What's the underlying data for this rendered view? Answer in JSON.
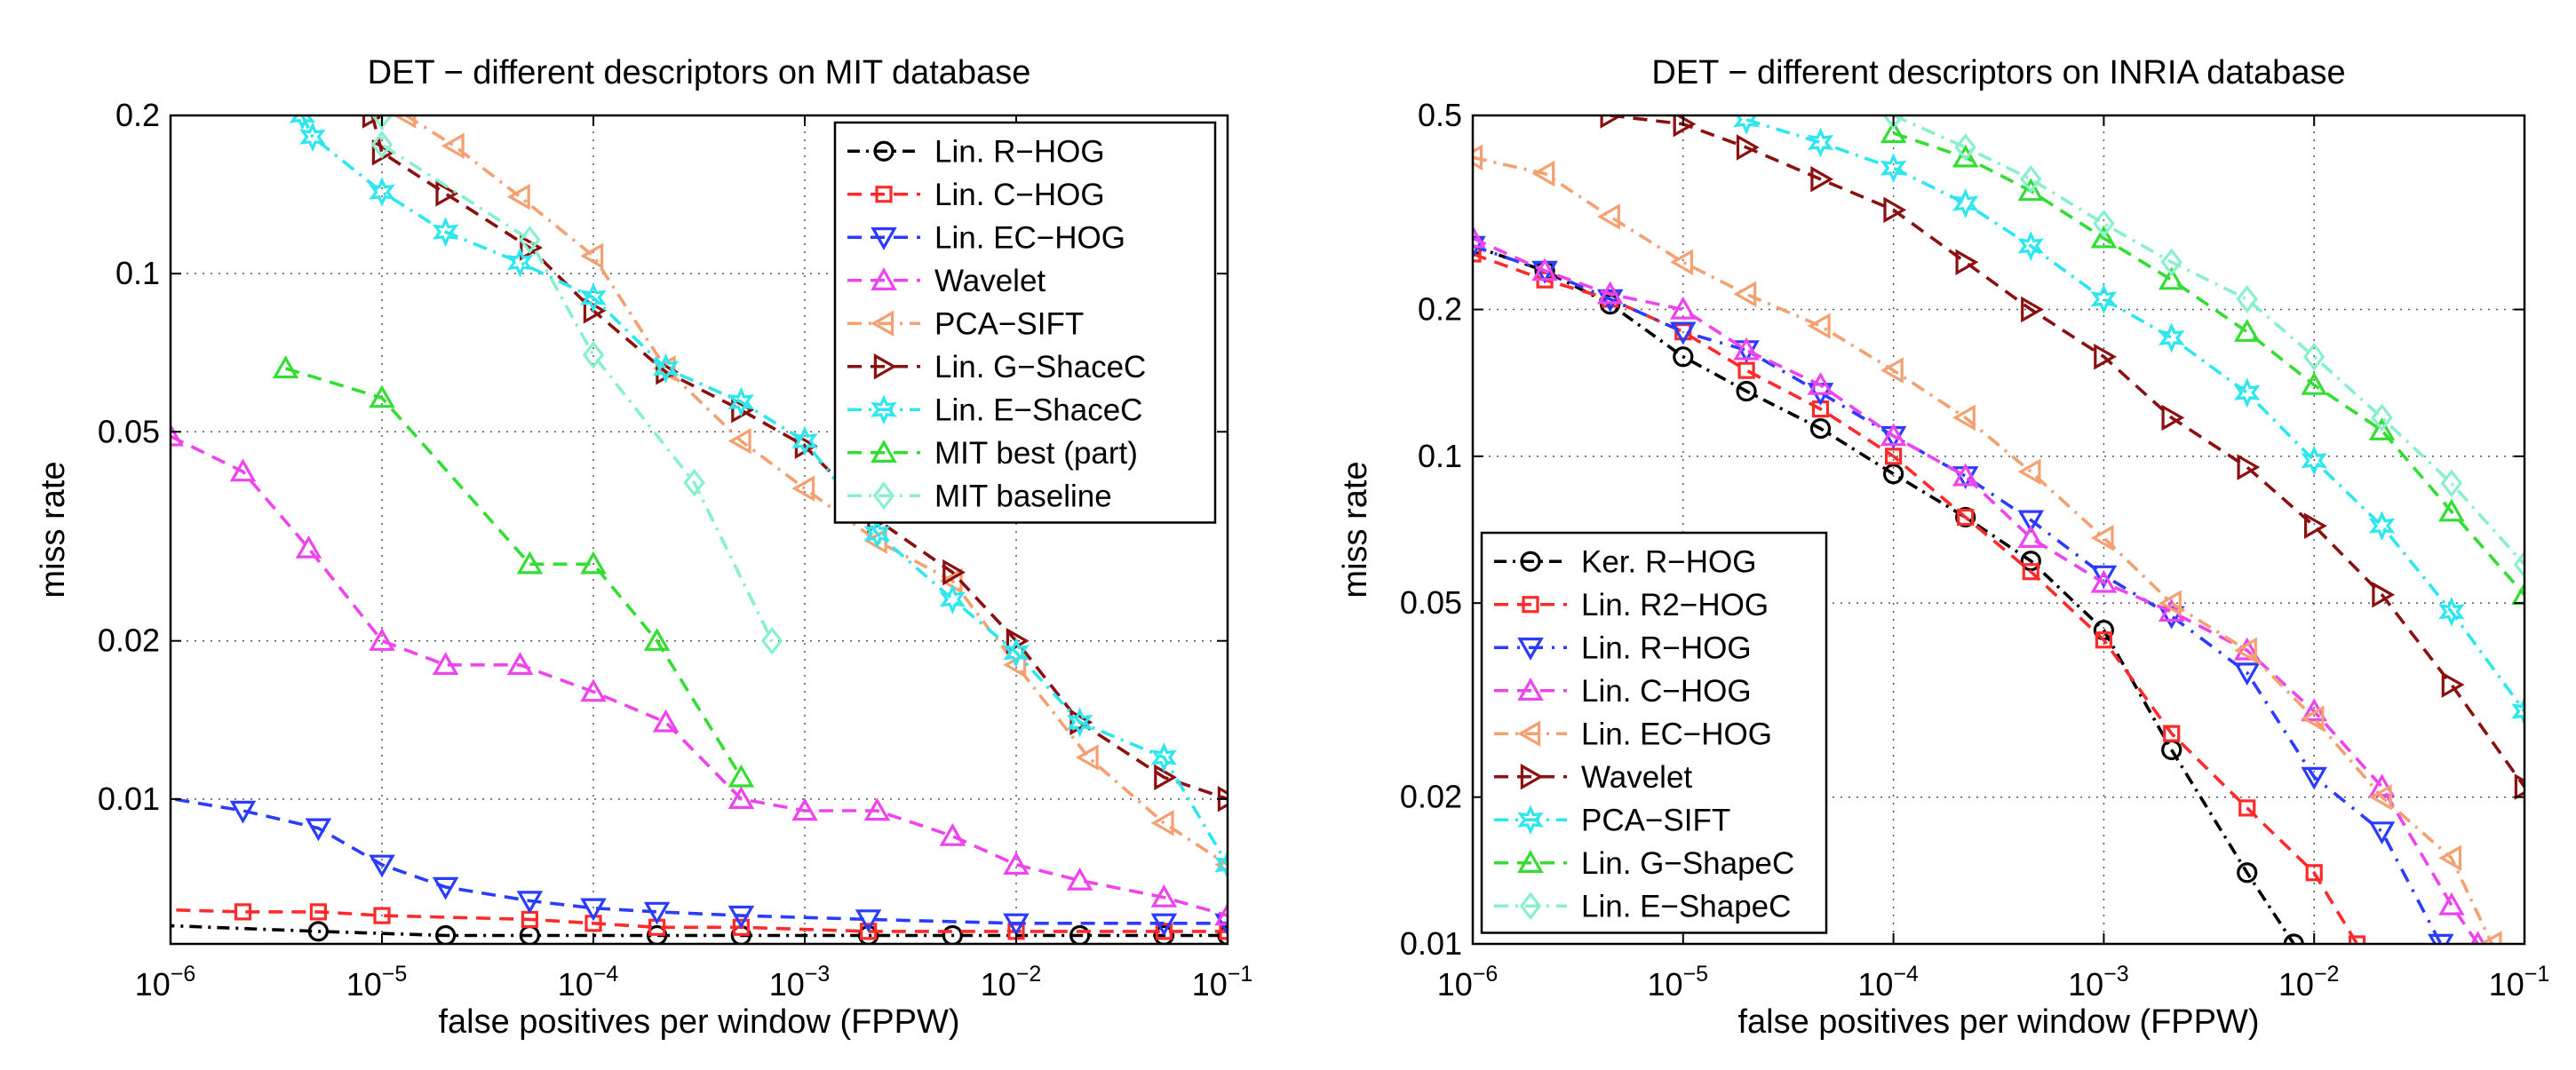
{
  "chart_data": [
    {
      "type": "line",
      "title": "DET − different descriptors on MIT database",
      "xlabel": "false positives per window (FPPW)",
      "ylabel": "miss rate",
      "x_scale": "log",
      "y_scale": "log",
      "xlim": [
        1e-06,
        0.1
      ],
      "ylim": [
        0.0053,
        0.2
      ],
      "x_ticks": [
        {
          "value": 1e-06,
          "base": "10",
          "exp": "−6"
        },
        {
          "value": 1e-05,
          "base": "10",
          "exp": "−5"
        },
        {
          "value": 0.0001,
          "base": "10",
          "exp": "−4"
        },
        {
          "value": 0.001,
          "base": "10",
          "exp": "−3"
        },
        {
          "value": 0.01,
          "base": "10",
          "exp": "−2"
        },
        {
          "value": 0.1,
          "base": "10",
          "exp": "−1"
        }
      ],
      "y_ticks": [
        {
          "value": 0.01,
          "label": "0.01"
        },
        {
          "value": 0.02,
          "label": "0.02"
        },
        {
          "value": 0.05,
          "label": "0.05"
        },
        {
          "value": 0.1,
          "label": "0.1"
        },
        {
          "value": 0.2,
          "label": "0.2"
        }
      ],
      "grid": true,
      "legend_position": "top-right",
      "series": [
        {
          "name": "Lin. R−HOG",
          "color": "#000000",
          "marker": "circle",
          "dash": "14 7 3 7",
          "x": [
            5e-07,
            5e-06,
            2e-05,
            5e-05,
            0.0002,
            0.0005,
            0.002,
            0.005,
            0.02,
            0.05,
            0.1
          ],
          "y": [
            0.0058,
            0.0056,
            0.0055,
            0.0055,
            0.0055,
            0.0055,
            0.0055,
            0.0055,
            0.0055,
            0.0055,
            0.0055
          ]
        },
        {
          "name": "Lin. C−HOG",
          "color": "#ff2a2a",
          "marker": "square",
          "dash": "16 10",
          "x": [
            5e-07,
            2.2e-06,
            5e-06,
            1e-05,
            5e-05,
            0.0001,
            0.0002,
            0.0005,
            0.002,
            0.01,
            0.05,
            0.1
          ],
          "y": [
            0.0062,
            0.0061,
            0.0061,
            0.006,
            0.0059,
            0.0058,
            0.0057,
            0.0057,
            0.0056,
            0.0056,
            0.0056,
            0.0056
          ]
        },
        {
          "name": "Lin. EC−HOG",
          "color": "#2a3cff",
          "marker": "triangle-down",
          "dash": "16 10",
          "x": [
            5e-07,
            2.2e-06,
            5e-06,
            1e-05,
            2e-05,
            5e-05,
            0.0001,
            0.0002,
            0.0005,
            0.002,
            0.01,
            0.05,
            0.1
          ],
          "y": [
            0.0105,
            0.0095,
            0.0088,
            0.0075,
            0.0068,
            0.0064,
            0.0062,
            0.0061,
            0.006,
            0.0059,
            0.0058,
            0.0058,
            0.0058
          ]
        },
        {
          "name": "Wavelet",
          "color": "#ee44ee",
          "marker": "triangle-up",
          "dash": "16 10",
          "x": [
            1e-06,
            2.2e-06,
            4.5e-06,
            1e-05,
            2e-05,
            4.5e-05,
            0.0001,
            0.00022,
            0.0005,
            0.001,
            0.0022,
            0.005,
            0.01,
            0.02,
            0.05,
            0.1
          ],
          "y": [
            0.049,
            0.042,
            0.03,
            0.02,
            0.018,
            0.018,
            0.016,
            0.014,
            0.01,
            0.0095,
            0.0095,
            0.0085,
            0.0075,
            0.007,
            0.0065,
            0.006
          ]
        },
        {
          "name": "PCA−SIFT",
          "color": "#f4a070",
          "marker": "triangle-left",
          "dash": "16 8 3 8",
          "x": [
            1.3e-05,
            2.2e-05,
            4.5e-05,
            0.0001,
            0.00022,
            0.0005,
            0.001,
            0.0022,
            0.005,
            0.01,
            0.022,
            0.05,
            0.1
          ],
          "y": [
            0.2,
            0.175,
            0.14,
            0.108,
            0.066,
            0.048,
            0.039,
            0.031,
            0.026,
            0.018,
            0.012,
            0.009,
            0.0075
          ]
        },
        {
          "name": "Lin. G−ShaceC",
          "color": "#8b1010",
          "marker": "triangle-right",
          "dash": "16 10",
          "x": [
            9e-06,
            1e-05,
            2e-05,
            5e-05,
            0.0001,
            0.00022,
            0.0005,
            0.001,
            0.0022,
            0.005,
            0.01,
            0.02,
            0.05,
            0.1
          ],
          "y": [
            0.2,
            0.17,
            0.142,
            0.112,
            0.085,
            0.065,
            0.055,
            0.047,
            0.034,
            0.027,
            0.02,
            0.014,
            0.011,
            0.01
          ]
        },
        {
          "name": "Lin. E−ShaceC",
          "color": "#2ee6ee",
          "marker": "hexagram",
          "dash": "16 8 3 8",
          "x": [
            4.2e-06,
            4.7e-06,
            1e-05,
            2e-05,
            4.5e-05,
            0.0001,
            0.00022,
            0.0005,
            0.001,
            0.0022,
            0.005,
            0.01,
            0.02,
            0.05,
            0.1
          ],
          "y": [
            0.2,
            0.182,
            0.143,
            0.12,
            0.105,
            0.09,
            0.066,
            0.057,
            0.048,
            0.032,
            0.024,
            0.019,
            0.014,
            0.012,
            0.0075
          ]
        },
        {
          "name": "MIT best (part)",
          "color": "#33dd33",
          "marker": "triangle-up",
          "dash": "16 10",
          "x": [
            3.5e-06,
            1e-05,
            5e-05,
            0.0001,
            0.0002,
            0.0005
          ],
          "y": [
            0.066,
            0.058,
            0.028,
            0.028,
            0.02,
            0.011
          ]
        },
        {
          "name": "MIT baseline",
          "color": "#88f0cc",
          "marker": "diamond",
          "dash": "16 8 3 8",
          "x": [
            1e-05,
            1e-05,
            5e-05,
            0.0001,
            0.0003,
            0.0007
          ],
          "y": [
            0.2,
            0.176,
            0.116,
            0.07,
            0.04,
            0.02
          ]
        }
      ]
    },
    {
      "type": "line",
      "title": "DET − different descriptors on INRIA database",
      "xlabel": "false positives per window (FPPW)",
      "ylabel": "miss rate",
      "x_scale": "log",
      "y_scale": "log",
      "xlim": [
        1e-06,
        0.1
      ],
      "ylim": [
        0.01,
        0.5
      ],
      "x_ticks": [
        {
          "value": 1e-06,
          "base": "10",
          "exp": "−6"
        },
        {
          "value": 1e-05,
          "base": "10",
          "exp": "−5"
        },
        {
          "value": 0.0001,
          "base": "10",
          "exp": "−4"
        },
        {
          "value": 0.001,
          "base": "10",
          "exp": "−3"
        },
        {
          "value": 0.01,
          "base": "10",
          "exp": "−2"
        },
        {
          "value": 0.1,
          "base": "10",
          "exp": "−1"
        }
      ],
      "y_ticks": [
        {
          "value": 0.01,
          "label": "0.01"
        },
        {
          "value": 0.02,
          "label": "0.02"
        },
        {
          "value": 0.05,
          "label": "0.05"
        },
        {
          "value": 0.1,
          "label": "0.1"
        },
        {
          "value": 0.2,
          "label": "0.2"
        },
        {
          "value": 0.5,
          "label": "0.5"
        }
      ],
      "grid": true,
      "legend_position": "bottom-left",
      "series": [
        {
          "name": "Ker. R−HOG",
          "color": "#000000",
          "marker": "circle",
          "dash": "14 7 3 7",
          "x": [
            1e-06,
            2.2e-06,
            4.5e-06,
            1e-05,
            2e-05,
            4.5e-05,
            0.0001,
            0.00022,
            0.00045,
            0.001,
            0.0021,
            0.0048,
            0.008
          ],
          "y": [
            0.27,
            0.24,
            0.205,
            0.16,
            0.136,
            0.114,
            0.092,
            0.075,
            0.061,
            0.044,
            0.025,
            0.014,
            0.01
          ]
        },
        {
          "name": "Lin. R2−HOG",
          "color": "#ff2a2a",
          "marker": "square",
          "dash": "16 10",
          "x": [
            1e-06,
            2.2e-06,
            4.5e-06,
            1e-05,
            2e-05,
            4.5e-05,
            0.0001,
            0.00022,
            0.00045,
            0.001,
            0.0021,
            0.0048,
            0.01,
            0.016
          ],
          "y": [
            0.26,
            0.23,
            0.21,
            0.18,
            0.15,
            0.125,
            0.1,
            0.075,
            0.058,
            0.042,
            0.027,
            0.019,
            0.014,
            0.01
          ]
        },
        {
          "name": "Lin. R−HOG",
          "color": "#2a3cff",
          "marker": "triangle-down",
          "dash": "16 10 3 10",
          "x": [
            1e-06,
            2.2e-06,
            4.5e-06,
            1e-05,
            2e-05,
            4.5e-05,
            0.0001,
            0.00022,
            0.00045,
            0.001,
            0.0021,
            0.0048,
            0.01,
            0.021,
            0.04
          ],
          "y": [
            0.27,
            0.24,
            0.21,
            0.18,
            0.165,
            0.135,
            0.11,
            0.091,
            0.074,
            0.057,
            0.047,
            0.036,
            0.022,
            0.017,
            0.01
          ]
        },
        {
          "name": "Lin. C−HOG",
          "color": "#ee44ee",
          "marker": "triangle-up",
          "dash": "16 10",
          "x": [
            1e-06,
            2.2e-06,
            4.5e-06,
            1e-05,
            2e-05,
            4.5e-05,
            0.0001,
            0.00022,
            0.00045,
            0.001,
            0.0021,
            0.0048,
            0.01,
            0.021,
            0.045,
            0.06
          ],
          "y": [
            0.28,
            0.24,
            0.215,
            0.2,
            0.165,
            0.14,
            0.11,
            0.091,
            0.068,
            0.055,
            0.048,
            0.04,
            0.03,
            0.021,
            0.012,
            0.01
          ]
        },
        {
          "name": "Lin. EC−HOG",
          "color": "#f4a070",
          "marker": "triangle-left",
          "dash": "16 8 3 8",
          "x": [
            1e-06,
            2.2e-06,
            4.5e-06,
            1e-05,
            2e-05,
            4.5e-05,
            0.0001,
            0.00022,
            0.00045,
            0.001,
            0.0021,
            0.0048,
            0.01,
            0.021,
            0.045,
            0.07
          ],
          "y": [
            0.41,
            0.38,
            0.31,
            0.25,
            0.215,
            0.185,
            0.15,
            0.12,
            0.093,
            0.068,
            0.05,
            0.04,
            0.029,
            0.02,
            0.015,
            0.01
          ]
        },
        {
          "name": "Wavelet",
          "color": "#8b1010",
          "marker": "triangle-right",
          "dash": "16 10",
          "x": [
            4.5e-06,
            1e-05,
            2e-05,
            4.5e-05,
            0.0001,
            0.00022,
            0.00045,
            0.001,
            0.0021,
            0.0048,
            0.01,
            0.021,
            0.045,
            0.1
          ],
          "y": [
            0.5,
            0.48,
            0.43,
            0.37,
            0.32,
            0.25,
            0.2,
            0.16,
            0.12,
            0.095,
            0.072,
            0.052,
            0.034,
            0.021
          ]
        },
        {
          "name": "PCA−SIFT",
          "color": "#2ee6ee",
          "marker": "hexagram",
          "dash": "16 8 3 8",
          "x": [
            2e-05,
            4.5e-05,
            0.0001,
            0.00022,
            0.00045,
            0.001,
            0.0021,
            0.0048,
            0.01,
            0.021,
            0.045,
            0.1
          ],
          "y": [
            0.49,
            0.44,
            0.39,
            0.33,
            0.27,
            0.21,
            0.175,
            0.135,
            0.098,
            0.072,
            0.048,
            0.03
          ]
        },
        {
          "name": "Lin. G−ShapeC",
          "color": "#33dd33",
          "marker": "triangle-up",
          "dash": "16 10",
          "x": [
            0.0001,
            0.00022,
            0.00045,
            0.001,
            0.0021,
            0.0048,
            0.01,
            0.021,
            0.045,
            0.1
          ],
          "y": [
            0.46,
            0.41,
            0.35,
            0.28,
            0.23,
            0.18,
            0.14,
            0.113,
            0.077,
            0.052
          ]
        },
        {
          "name": "Lin. E−ShapeC",
          "color": "#88f0cc",
          "marker": "diamond",
          "dash": "16 8 3 8",
          "x": [
            0.0001,
            0.00022,
            0.00045,
            0.001,
            0.0021,
            0.0048,
            0.01,
            0.021,
            0.045,
            0.1
          ],
          "y": [
            0.5,
            0.43,
            0.37,
            0.3,
            0.25,
            0.21,
            0.16,
            0.12,
            0.088,
            0.06
          ]
        }
      ]
    }
  ]
}
